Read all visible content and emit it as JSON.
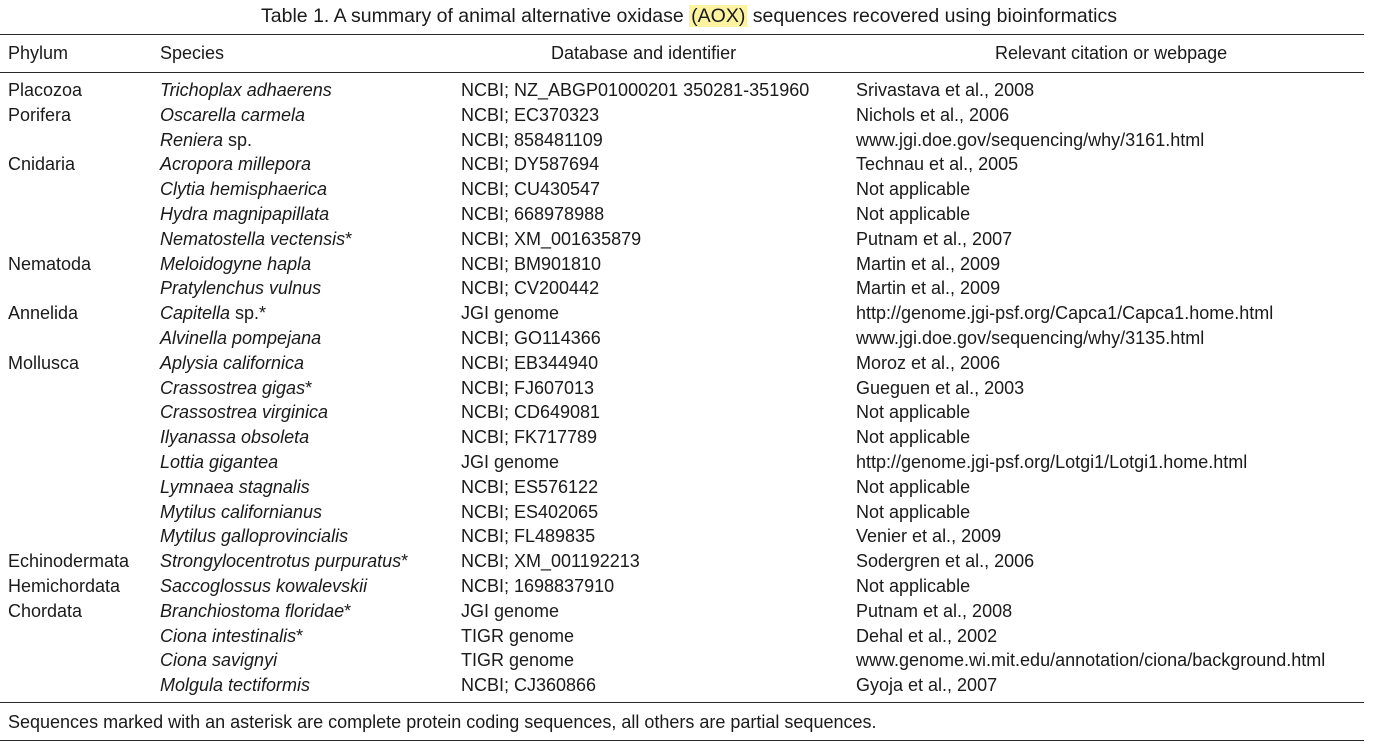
{
  "title": {
    "before": "Table 1. A summary of animal alternative oxidase ",
    "highlight": "(AOX)",
    "after": " sequences recovered using bioinformatics"
  },
  "headers": {
    "phylum": "Phylum",
    "species": "Species",
    "database": "Database and identifier",
    "citation": "Relevant citation or webpage"
  },
  "rows": [
    {
      "phylum": "Placozoa",
      "species": "Trichoplax adhaerens",
      "suffix": "",
      "database": "NCBI; NZ_ABGP01000201 350281-351960",
      "citation": "Srivastava et al., 2008"
    },
    {
      "phylum": "Porifera",
      "species": "Oscarella carmela",
      "suffix": "",
      "database": "NCBI; EC370323",
      "citation": "Nichols et al., 2006"
    },
    {
      "phylum": "",
      "species": "Reniera",
      "suffix": " sp.",
      "database": "NCBI; 858481109",
      "citation": "www.jgi.doe.gov/sequencing/why/3161.html"
    },
    {
      "phylum": "Cnidaria",
      "species": "Acropora millepora",
      "suffix": "",
      "database": "NCBI; DY587694",
      "citation": "Technau et al., 2005"
    },
    {
      "phylum": "",
      "species": "Clytia hemisphaerica",
      "suffix": "",
      "database": "NCBI; CU430547",
      "citation": "Not applicable"
    },
    {
      "phylum": "",
      "species": "Hydra magnipapillata",
      "suffix": "",
      "database": "NCBI; 668978988",
      "citation": "Not applicable"
    },
    {
      "phylum": "",
      "species": "Nematostella vectensis",
      "suffix": "*",
      "database": "NCBI; XM_001635879",
      "citation": "Putnam et al., 2007"
    },
    {
      "phylum": "Nematoda",
      "species": "Meloidogyne hapla",
      "suffix": "",
      "database": "NCBI; BM901810",
      "citation": "Martin et al., 2009"
    },
    {
      "phylum": "",
      "species": "Pratylenchus vulnus",
      "suffix": "",
      "database": "NCBI; CV200442",
      "citation": "Martin et al., 2009"
    },
    {
      "phylum": "Annelida",
      "species": "Capitella",
      "suffix": " sp.*",
      "database": "JGI genome",
      "citation": "http://genome.jgi-psf.org/Capca1/Capca1.home.html"
    },
    {
      "phylum": "",
      "species": "Alvinella pompejana",
      "suffix": "",
      "database": "NCBI; GO114366",
      "citation": "www.jgi.doe.gov/sequencing/why/3135.html"
    },
    {
      "phylum": "Mollusca",
      "species": "Aplysia californica",
      "suffix": "",
      "database": "NCBI; EB344940",
      "citation": "Moroz et al., 2006"
    },
    {
      "phylum": "",
      "species": "Crassostrea gigas",
      "suffix": "*",
      "database": "NCBI; FJ607013",
      "citation": "Gueguen et al., 2003"
    },
    {
      "phylum": "",
      "species": "Crassostrea virginica",
      "suffix": "",
      "database": "NCBI; CD649081",
      "citation": "Not applicable"
    },
    {
      "phylum": "",
      "species": "Ilyanassa obsoleta",
      "suffix": "",
      "database": "NCBI; FK717789",
      "citation": "Not applicable"
    },
    {
      "phylum": "",
      "species": "Lottia gigantea",
      "suffix": "",
      "database": "JGI genome",
      "citation": "http://genome.jgi-psf.org/Lotgi1/Lotgi1.home.html"
    },
    {
      "phylum": "",
      "species": "Lymnaea stagnalis",
      "suffix": "",
      "database": "NCBI; ES576122",
      "citation": "Not applicable"
    },
    {
      "phylum": "",
      "species": "Mytilus californianus",
      "suffix": "",
      "database": "NCBI; ES402065",
      "citation": "Not applicable"
    },
    {
      "phylum": "",
      "species": "Mytilus galloprovincialis",
      "suffix": "",
      "database": "NCBI; FL489835",
      "citation": "Venier et al., 2009"
    },
    {
      "phylum": "Echinodermata",
      "species": "Strongylocentrotus purpuratus",
      "suffix": "*",
      "database": "NCBI; XM_001192213",
      "citation": "Sodergren et al., 2006"
    },
    {
      "phylum": "Hemichordata",
      "species": "Saccoglossus kowalevskii",
      "suffix": "",
      "database": "NCBI; 1698837910",
      "citation": "Not applicable"
    },
    {
      "phylum": "Chordata",
      "species": "Branchiostoma floridae",
      "suffix": "*",
      "database": "JGI genome",
      "citation": "Putnam et al., 2008"
    },
    {
      "phylum": "",
      "species": "Ciona intestinalis",
      "suffix": "*",
      "database": "TIGR genome",
      "citation": "Dehal et al., 2002"
    },
    {
      "phylum": "",
      "species": "Ciona savignyi",
      "suffix": "",
      "database": "TIGR genome",
      "citation": "www.genome.wi.mit.edu/annotation/ciona/background.html"
    },
    {
      "phylum": "",
      "species": "Molgula tectiformis",
      "suffix": "",
      "database": "NCBI; CJ360866",
      "citation": "Gyoja et al., 2007"
    }
  ],
  "footnote": "Sequences marked with an asterisk are complete protein coding sequences, all others are partial sequences.",
  "colors": {
    "text": "#1a1a1a",
    "highlight": "#fbf3a0",
    "rule": "#2a2a2a"
  }
}
